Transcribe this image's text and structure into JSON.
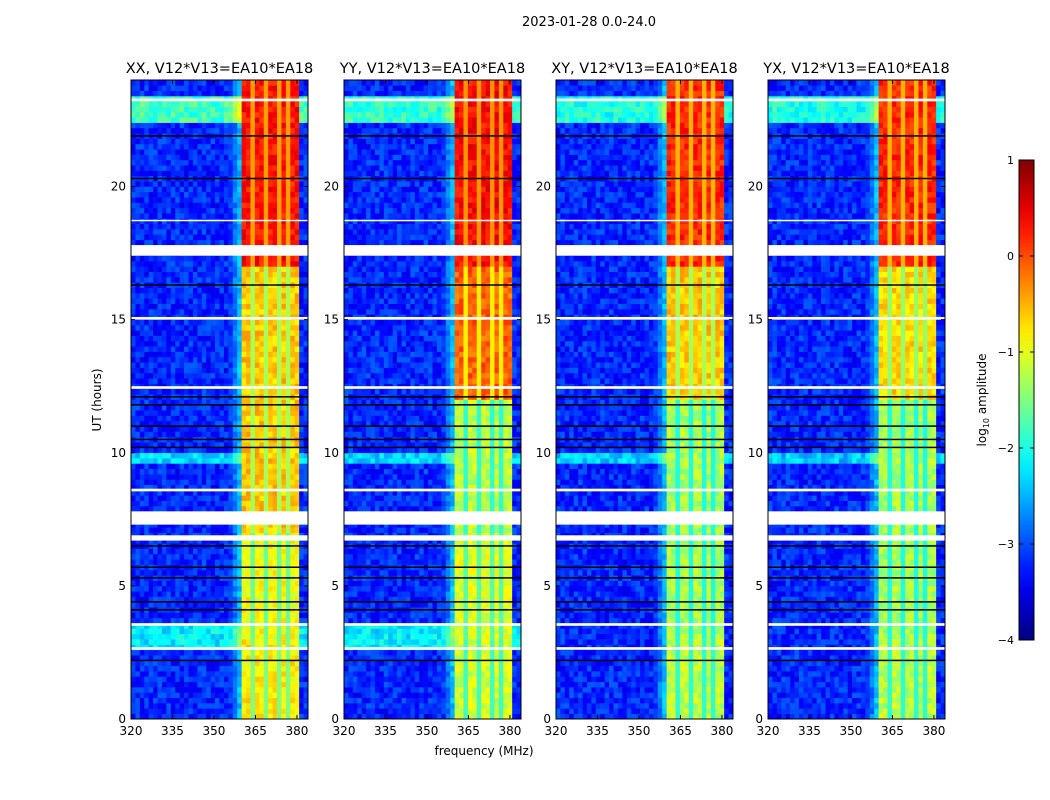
{
  "chart_data": {
    "type": "heatmap",
    "suptitle": "2023-01-28 0.0-24.0",
    "xlabel": "frequency (MHz)",
    "ylabel": "UT (hours)",
    "xlim": [
      320,
      384
    ],
    "ylim": [
      0,
      24
    ],
    "xticks": [
      "320",
      "335",
      "350",
      "365",
      "380"
    ],
    "xtick_values": [
      320,
      335,
      350,
      365,
      380
    ],
    "yticks": [
      "0",
      "5",
      "10",
      "15",
      "20"
    ],
    "ytick_values": [
      0,
      5,
      10,
      15,
      20
    ],
    "colorbar": {
      "label_main": "log",
      "label_sub": "10",
      "label_rest": " amplitude",
      "range": [
        -4,
        1
      ],
      "ticks": [
        "1",
        "0",
        "−1",
        "−2",
        "−3",
        "−4"
      ],
      "tick_values": [
        1,
        0,
        -1,
        -2,
        -3,
        -4
      ],
      "colormap": "jet"
    },
    "signal_band_mhz": [
      360.5,
      380
    ],
    "subband_gaps_mhz": [
      364,
      368.5,
      373,
      377
    ],
    "background_level": -3.2,
    "flagged_hours": [
      [
        2.6,
        2.7
      ],
      [
        3.5,
        3.6
      ],
      [
        6.7,
        6.9
      ],
      [
        7.3,
        7.8
      ],
      [
        8.55,
        8.65
      ],
      [
        12.4,
        12.5
      ],
      [
        15.0,
        15.1
      ],
      [
        17.4,
        17.8
      ],
      [
        18.7,
        18.75
      ],
      [
        23.2,
        23.3
      ]
    ],
    "dropout_hours": [
      2.2,
      4.1,
      4.4,
      5.3,
      5.7,
      6.5,
      10.2,
      10.5,
      11.0,
      11.8,
      12.1,
      16.3,
      20.3,
      21.9
    ],
    "panels": [
      {
        "title": "XX, V12*V13=EA10*EA18",
        "band_levels": [
          [
            0,
            3,
            -0.8
          ],
          [
            3,
            7,
            -0.9
          ],
          [
            7,
            12,
            -0.6
          ],
          [
            12,
            17,
            -0.6
          ],
          [
            17,
            24,
            0.3
          ]
        ],
        "bg_bright": [
          [
            2.7,
            3.7,
            -2.2
          ],
          [
            9.6,
            10.0,
            -2.3
          ],
          [
            22.5,
            23.5,
            -1.8
          ]
        ]
      },
      {
        "title": "YY, V12*V13=EA10*EA18",
        "band_levels": [
          [
            0,
            3,
            -1.1
          ],
          [
            3,
            7,
            -1.0
          ],
          [
            7,
            12,
            -1.2
          ],
          [
            12,
            17,
            -0.1
          ],
          [
            17,
            24,
            0.35
          ]
        ],
        "bg_bright": [
          [
            2.7,
            3.7,
            -2.2
          ],
          [
            9.6,
            10.0,
            -2.3
          ],
          [
            22.5,
            23.5,
            -1.9
          ]
        ]
      },
      {
        "title": "XY, V12*V13=EA10*EA18",
        "band_levels": [
          [
            0,
            3,
            -1.2
          ],
          [
            3,
            7,
            -1.3
          ],
          [
            7,
            12,
            -1.3
          ],
          [
            12,
            17,
            -0.6
          ],
          [
            17,
            24,
            0.2
          ]
        ],
        "bg_bright": [
          [
            9.6,
            10.0,
            -2.4
          ],
          [
            22.5,
            23.5,
            -2.0
          ]
        ]
      },
      {
        "title": "YX, V12*V13=EA10*EA18",
        "band_levels": [
          [
            0,
            3,
            -1.2
          ],
          [
            3,
            7,
            -1.3
          ],
          [
            7,
            12,
            -1.3
          ],
          [
            12,
            17,
            -0.7
          ],
          [
            17,
            24,
            0.2
          ]
        ],
        "bg_bright": [
          [
            9.6,
            10.0,
            -2.4
          ],
          [
            22.5,
            23.5,
            -2.0
          ]
        ]
      }
    ]
  }
}
